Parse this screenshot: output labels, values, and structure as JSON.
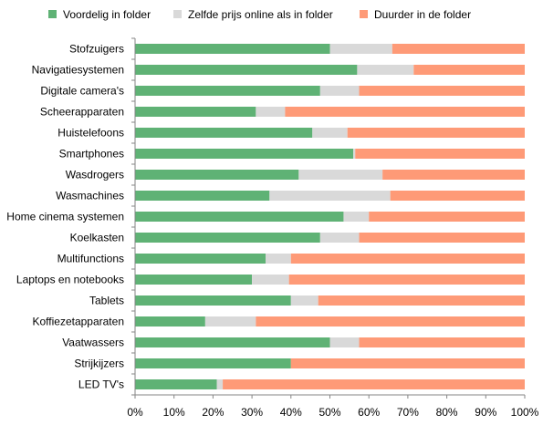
{
  "chart_data": {
    "type": "bar",
    "orientation": "horizontal",
    "stacked": true,
    "percent_stacked": true,
    "categories": [
      "Stofzuigers",
      "Navigatiesystemen",
      "Digitale camera's",
      "Scheerapparaten",
      "Huistelefoons",
      "Smartphones",
      "Wasdrogers",
      "Wasmachines",
      "Home cinema systemen",
      "Koelkasten",
      "Multifunctions",
      "Laptops en notebooks",
      "Tablets",
      "Koffiezetapparaten",
      "Vaatwassers",
      "Strijkijzers",
      "LED TV's"
    ],
    "series": [
      {
        "name": "Voordelig in folder",
        "color": "#5fb275",
        "values": [
          50,
          57,
          47.5,
          31,
          45.5,
          56,
          42,
          34.5,
          53.5,
          47.5,
          33.5,
          30,
          40,
          18,
          50,
          40,
          21
        ]
      },
      {
        "name": "Zelfde prijs online als in folder",
        "color": "#d9d9d9",
        "values": [
          16,
          14.5,
          10,
          7.5,
          9,
          0.5,
          21.5,
          31,
          6.5,
          10,
          6.5,
          9.5,
          7,
          13,
          7.5,
          0,
          1.5
        ]
      },
      {
        "name": "Duurder in de folder",
        "color": "#fe9a77",
        "values": [
          34,
          28.5,
          42.5,
          61.5,
          45.5,
          43.5,
          36.5,
          34.5,
          40,
          42.5,
          60,
          60.5,
          53,
          69,
          42.5,
          60,
          77.5
        ]
      }
    ],
    "xlim": [
      0,
      100
    ],
    "xticks": [
      "0%",
      "10%",
      "20%",
      "30%",
      "40%",
      "50%",
      "60%",
      "70%",
      "80%",
      "90%",
      "100%"
    ],
    "legend": "top",
    "grid": false
  }
}
